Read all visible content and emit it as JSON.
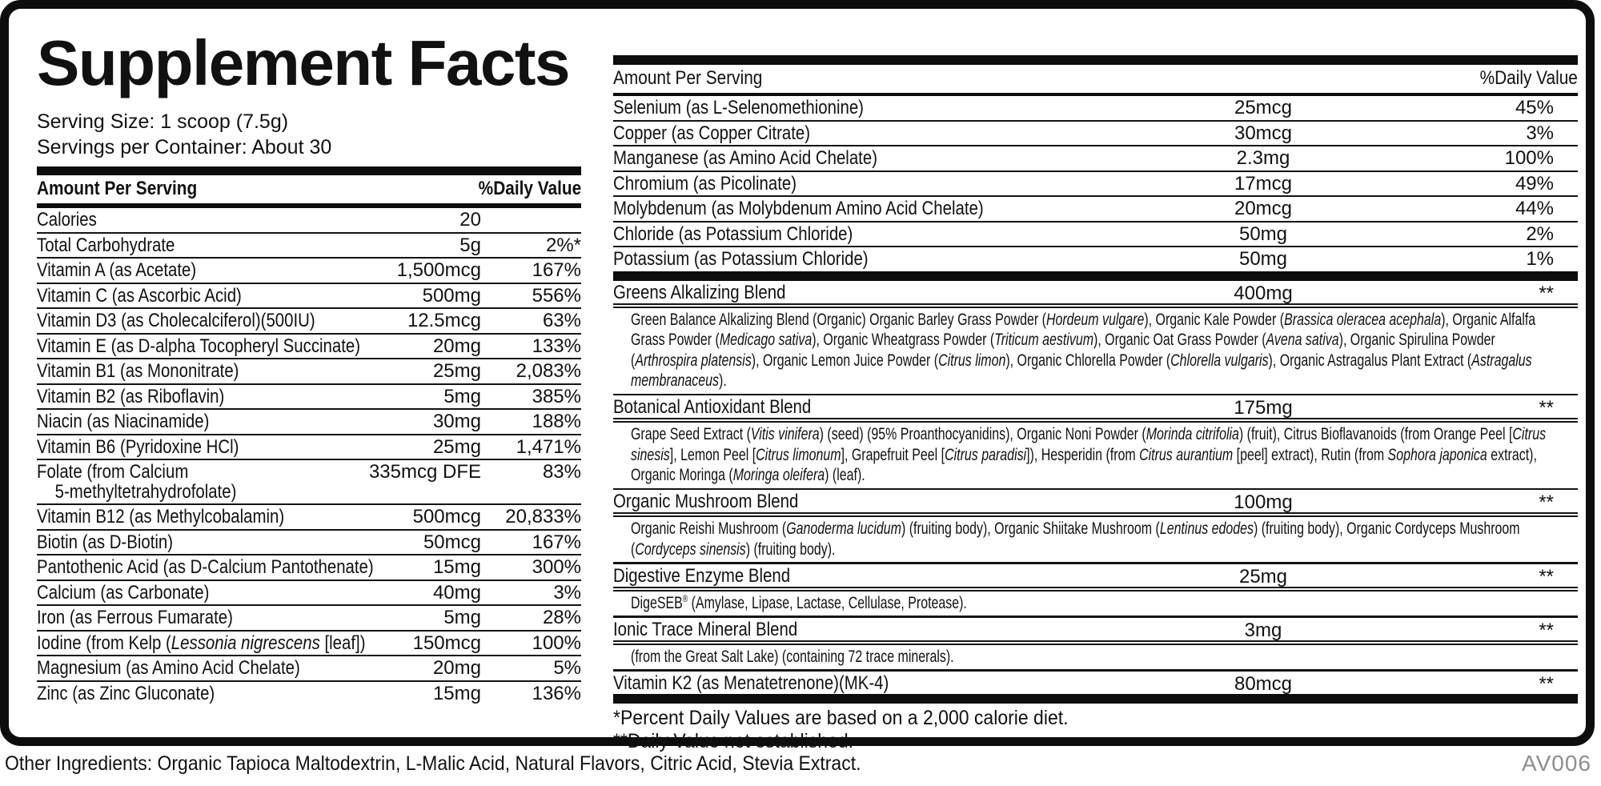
{
  "title": "Supplement Facts",
  "serving": {
    "size": "Serving Size: 1 scoop (7.5g)",
    "per_container": "Servings per Container: About 30"
  },
  "left_table": {
    "header": {
      "amount": "Amount Per Serving",
      "dv": "%Daily Value"
    },
    "rows": [
      {
        "label": "Calories",
        "amount": "20",
        "dv": ""
      },
      {
        "label": "Total Carbohydrate",
        "amount": "5g",
        "dv": "2%*"
      },
      {
        "label": "Vitamin A (as Acetate)",
        "amount": "1,500mcg",
        "dv": "167%"
      },
      {
        "label": "Vitamin C (as Ascorbic Acid)",
        "amount": "500mg",
        "dv": "556%"
      },
      {
        "label": "Vitamin D3 (as Cholecalciferol)(500IU)",
        "amount": "12.5mcg",
        "dv": "63%"
      },
      {
        "label": "Vitamin E (as D-alpha Tocopheryl Succinate)",
        "amount": "20mg",
        "dv": "133%"
      },
      {
        "label": "Vitamin B1 (as Mononitrate)",
        "amount": "25mg",
        "dv": "2,083%"
      },
      {
        "label": "Vitamin B2 (as Riboflavin)",
        "amount": "5mg",
        "dv": "385%"
      },
      {
        "label": "Niacin (as Niacinamide)",
        "amount": "30mg",
        "dv": "188%"
      },
      {
        "label": "Vitamin B6 (Pyridoxine HCl)",
        "amount": "25mg",
        "dv": "1,471%"
      },
      {
        "label": [
          {
            "t": "Folate (from Calcium"
          },
          {
            "br": true
          },
          {
            "t": "    5-methyltetrahydrofolate)"
          }
        ],
        "amount": "335mcg DFE",
        "dv": "83%"
      },
      {
        "label": "Vitamin B12 (as Methylcobalamin)",
        "amount": "500mcg",
        "dv": "20,833%"
      },
      {
        "label": "Biotin (as D-Biotin)",
        "amount": "50mcg",
        "dv": "167%"
      },
      {
        "label": "Pantothenic Acid (as D-Calcium Pantothenate)",
        "amount": "15mg",
        "dv": "300%"
      },
      {
        "label": "Calcium (as Carbonate)",
        "amount": "40mg",
        "dv": "3%"
      },
      {
        "label": "Iron (as Ferrous Fumarate)",
        "amount": "5mg",
        "dv": "28%"
      },
      {
        "label": [
          {
            "t": "Iodine (from Kelp ("
          },
          {
            "t": "Lessonia nigrescens",
            "i": true
          },
          {
            "t": " [leaf])"
          }
        ],
        "amount": "150mcg",
        "dv": "100%"
      },
      {
        "label": "Magnesium (as Amino Acid Chelate)",
        "amount": "20mg",
        "dv": "5%"
      },
      {
        "label": "Zinc (as Zinc Gluconate)",
        "amount": "15mg",
        "dv": "136%"
      }
    ]
  },
  "right_table": {
    "header": {
      "amount": "Amount Per Serving",
      "dv": "%Daily Value"
    },
    "rows": [
      {
        "label": "Selenium (as L-Selenomethionine)",
        "amount": "25mcg",
        "dv": "45%"
      },
      {
        "label": "Copper (as Copper Citrate)",
        "amount": "30mcg",
        "dv": "3%"
      },
      {
        "label": "Manganese (as Amino Acid Chelate)",
        "amount": "2.3mg",
        "dv": "100%"
      },
      {
        "label": "Chromium (as Picolinate)",
        "amount": "17mcg",
        "dv": "49%"
      },
      {
        "label": "Molybdenum (as Molybdenum Amino Acid Chelate)",
        "amount": "20mcg",
        "dv": "44%"
      },
      {
        "label": "Chloride (as Potassium Chloride)",
        "amount": "50mg",
        "dv": "2%"
      },
      {
        "label": "Potassium (as Potassium Chloride)",
        "amount": "50mg",
        "dv": "1%"
      }
    ],
    "blends": [
      {
        "label": "Greens Alkalizing Blend",
        "amount": "400mg",
        "dv": "**",
        "desc": [
          {
            "t": "Green Balance Alkalizing Blend (Organic) Organic Barley Grass Powder ("
          },
          {
            "t": "Hordeum vulgare",
            "i": true
          },
          {
            "t": "), Organic Kale Powder ("
          },
          {
            "t": "Brassica oleracea acephala",
            "i": true
          },
          {
            "t": "), Organic Alfalfa Grass Powder ("
          },
          {
            "t": "Medicago sativa",
            "i": true
          },
          {
            "t": "), Organic Wheatgrass Powder ("
          },
          {
            "t": "Triticum aestivum",
            "i": true
          },
          {
            "t": "), Organic Oat Grass Powder ("
          },
          {
            "t": "Avena sativa",
            "i": true
          },
          {
            "t": "), Organic Spirulina Powder ("
          },
          {
            "t": "Arthrospira platensis",
            "i": true
          },
          {
            "t": "), Organic Lemon Juice Powder ("
          },
          {
            "t": "Citrus limon",
            "i": true
          },
          {
            "t": "), Organic Chlorella Powder ("
          },
          {
            "t": "Chlorella vulgaris",
            "i": true
          },
          {
            "t": "), Organic Astragalus Plant Extract ("
          },
          {
            "t": "Astragalus membranaceus",
            "i": true
          },
          {
            "t": ")."
          }
        ]
      },
      {
        "label": "Botanical Antioxidant Blend",
        "amount": "175mg",
        "dv": "**",
        "desc": [
          {
            "t": "Grape Seed Extract ("
          },
          {
            "t": "Vitis vinifera",
            "i": true
          },
          {
            "t": ") (seed) (95% Proanthocyanidins), Organic Noni Powder ("
          },
          {
            "t": "Morinda citrifolia",
            "i": true
          },
          {
            "t": ") (fruit), Citrus Bioflavanoids (from Orange Peel ["
          },
          {
            "t": "Citrus sinesis",
            "i": true
          },
          {
            "t": "], Lemon Peel ["
          },
          {
            "t": "Citrus limonum",
            "i": true
          },
          {
            "t": "], Grapefruit Peel ["
          },
          {
            "t": "Citrus paradisi",
            "i": true
          },
          {
            "t": "]), Hesperidin (from "
          },
          {
            "t": "Citrus aurantium",
            "i": true
          },
          {
            "t": " [peel] extract), Rutin (from "
          },
          {
            "t": "Sophora japonica",
            "i": true
          },
          {
            "t": " extract), Organic Moringa ("
          },
          {
            "t": "Moringa oleifera",
            "i": true
          },
          {
            "t": ") (leaf)."
          }
        ]
      },
      {
        "label": "Organic Mushroom Blend",
        "amount": "100mg",
        "dv": "**",
        "desc": [
          {
            "t": "Organic Reishi Mushroom ("
          },
          {
            "t": "Ganoderma lucidum",
            "i": true
          },
          {
            "t": ") (fruiting body), Organic Shiitake Mushroom ("
          },
          {
            "t": "Lentinus edodes",
            "i": true
          },
          {
            "t": ") (fruiting body), Organic Cordyceps Mushroom ("
          },
          {
            "t": "Cordyceps sinensis",
            "i": true
          },
          {
            "t": ") (fruiting body)."
          }
        ]
      },
      {
        "label": "Digestive Enzyme Blend",
        "amount": "25mg",
        "dv": "**",
        "desc": [
          {
            "t": "DigeSEB"
          },
          {
            "t": "®",
            "sup": true
          },
          {
            "t": " (Amylase, Lipase, Lactase, Cellulase, Protease)."
          }
        ]
      },
      {
        "label": "Ionic Trace Mineral Blend",
        "amount": "3mg",
        "dv": "**",
        "desc": [
          {
            "t": "(from the Great Salt Lake) (containing 72 trace minerals)."
          }
        ]
      },
      {
        "label": "Vitamin K2 (as Menatetrenone)(MK-4)",
        "amount": "80mcg",
        "dv": "**"
      }
    ],
    "footnotes": [
      "*Percent Daily Values are based on a 2,000 calorie diet.",
      "**Daily Value not established."
    ]
  },
  "footer": {
    "other_ingredients": "Other Ingredients: Organic Tapioca Maltodextrin, L-Malic Acid, Natural Flavors, Citric Acid, Stevia Extract.",
    "code": "AV006"
  },
  "colors": {
    "text": "#111111",
    "rule": "#0d0d0d",
    "muted_code": "#8d8d8d"
  }
}
